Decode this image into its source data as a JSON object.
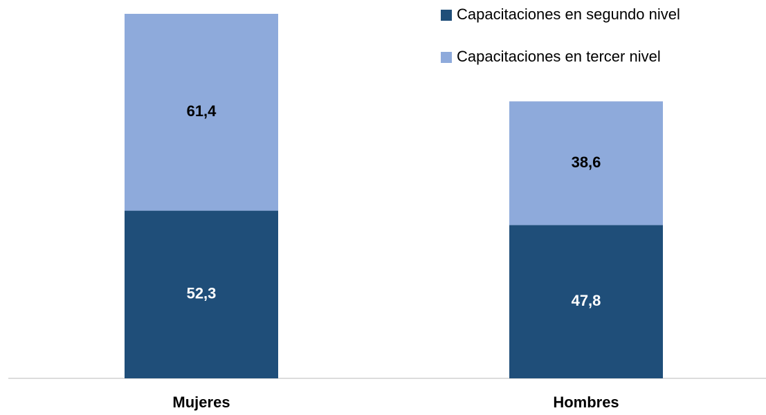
{
  "chart_data": {
    "type": "stacked_bar",
    "categories": [
      "Mujeres",
      "Hombres"
    ],
    "series": [
      {
        "name": "Capacitaciones en segundo nivel",
        "color": "#1f4e79",
        "label_color": "#ffffff",
        "values": [
          52.3,
          47.8
        ],
        "value_labels": [
          "52,3",
          "47,8"
        ]
      },
      {
        "name": "Capacitaciones en tercer nivel",
        "color": "#8eaadb",
        "label_color": "#000000",
        "values": [
          61.4,
          38.6
        ],
        "value_labels": [
          "61,4",
          "38,6"
        ]
      }
    ],
    "ylim": [
      0,
      114
    ],
    "legend": "top-right"
  }
}
